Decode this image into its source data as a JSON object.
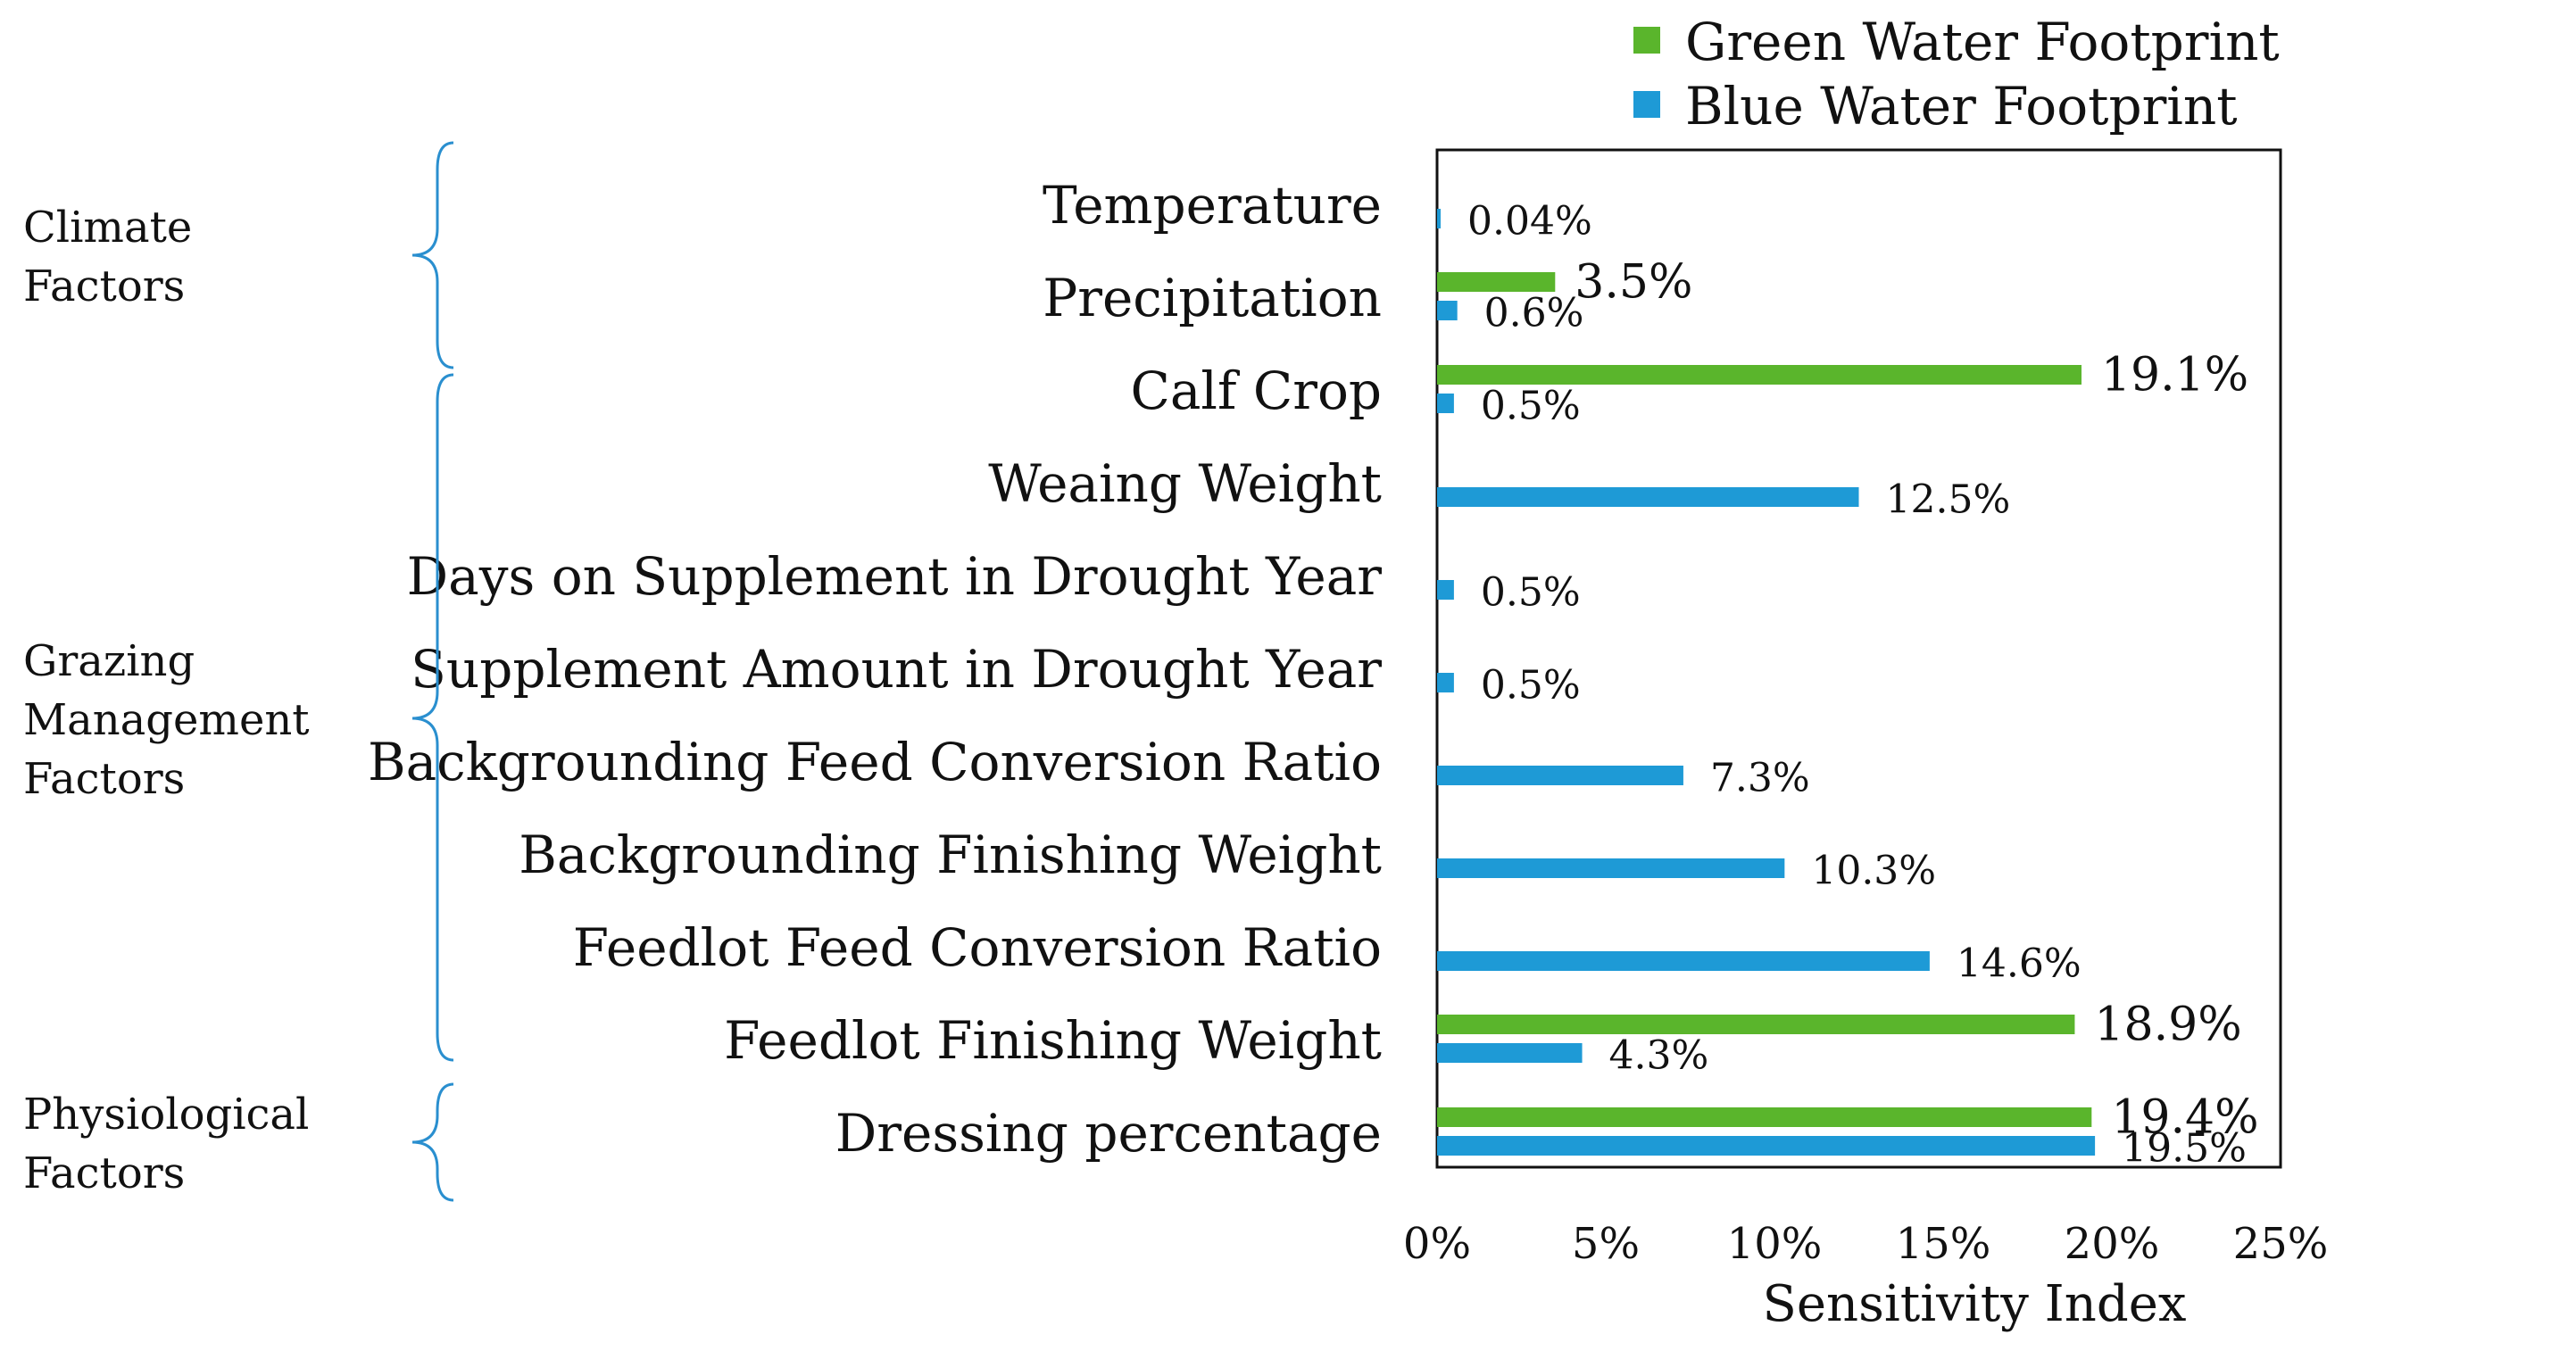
{
  "chart_data": {
    "type": "bar",
    "orientation": "horizontal",
    "title": "",
    "xlabel": "Sensitivity Index",
    "ylabel": "",
    "xlim": [
      0,
      25
    ],
    "x_ticks": [
      "0%",
      "5%",
      "10%",
      "15%",
      "20%",
      "25%"
    ],
    "legend_position": "top-right",
    "categories": [
      "Temperature",
      "Precipitation",
      "Calf Crop",
      "Weaing Weight",
      "Days on Supplement in Drought Year",
      "Supplement Amount in Drought Year",
      "Backgrounding Feed Conversion Ratio",
      "Backgrounding Finishing Weight",
      "Feedlot Feed Conversion Ratio",
      "Feedlot Finishing Weight",
      "Dressing percentage"
    ],
    "series": [
      {
        "name": "Green Water Footprint",
        "color": "#5ab52c",
        "values": [
          null,
          3.5,
          19.1,
          null,
          null,
          null,
          null,
          null,
          null,
          18.9,
          19.4
        ],
        "labels": [
          "",
          "3.5%",
          "19.1%",
          "",
          "",
          "",
          "",
          "",
          "",
          "18.9%",
          "19.4%"
        ]
      },
      {
        "name": "Blue Water Footprint",
        "color": "#1e9ad6",
        "values": [
          0.04,
          0.6,
          0.5,
          12.5,
          0.5,
          0.5,
          7.3,
          10.3,
          14.6,
          4.3,
          19.5
        ],
        "labels": [
          "0.04%",
          "0.6%",
          "0.5%",
          "12.5%",
          "0.5%",
          "0.5%",
          "7.3%",
          "10.3%",
          "14.6%",
          "4.3%",
          "19.5%"
        ]
      }
    ],
    "groups": [
      {
        "label_lines": [
          "Climate",
          "Factors"
        ],
        "categories": [
          "Temperature",
          "Precipitation"
        ]
      },
      {
        "label_lines": [
          "Grazing",
          "Management",
          "Factors"
        ],
        "categories": [
          "Calf Crop",
          "Weaing Weight",
          "Days on Supplement in Drought Year",
          "Supplement Amount in Drought Year",
          "Backgrounding Feed Conversion Ratio",
          "Backgrounding Finishing Weight",
          "Feedlot Feed Conversion Ratio",
          "Feedlot Finishing Weight"
        ]
      },
      {
        "label_lines": [
          "Physiological",
          "Factors"
        ],
        "categories": [
          "Dressing percentage"
        ]
      }
    ]
  }
}
